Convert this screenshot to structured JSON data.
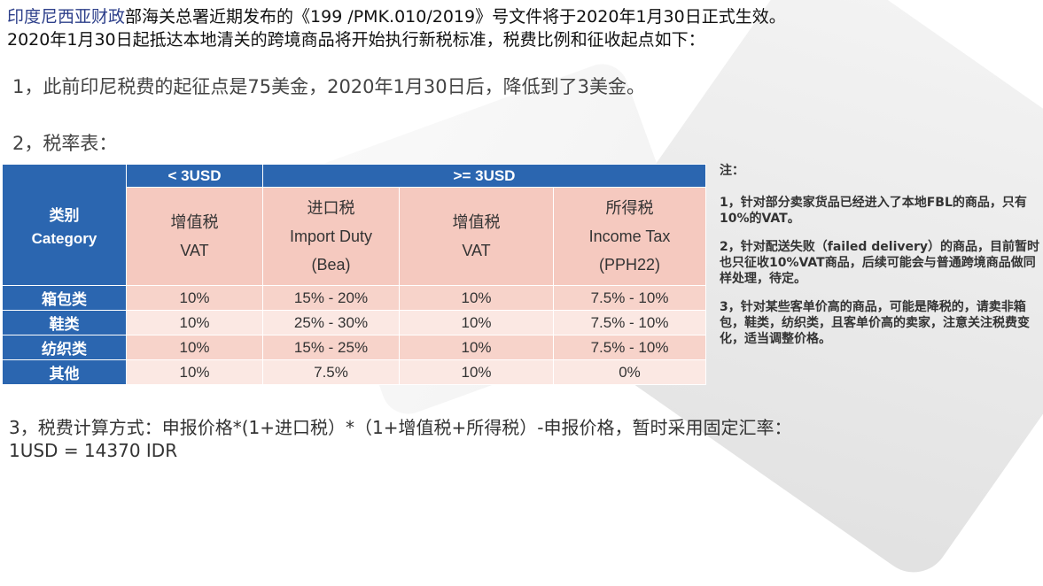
{
  "intro": {
    "line1_highlight": "印度尼西亚财政",
    "line1_rest": "部海关总署近期发布的《199 /PMK.010/2019》号文件将于2020年1月30日正式生效。",
    "line2": "2020年1月30日起抵达本地清关的跨境商品将开始执行新税标准，税费比例和征收起点如下："
  },
  "point1": "1，此前印尼税费的起征点是75美金，2020年1月30日后，降低到了3美金。",
  "point2": "2，税率表：",
  "table": {
    "group_lt": "< 3USD",
    "group_ge": ">= 3USD",
    "category_cn": "类别",
    "category_en": "Category",
    "columns": [
      {
        "cn": "增值税",
        "en": "VAT",
        "sub": ""
      },
      {
        "cn": "进口税",
        "en": "Import Duty",
        "sub": "(Bea)"
      },
      {
        "cn": "增值税",
        "en": "VAT",
        "sub": ""
      },
      {
        "cn": "所得税",
        "en": "Income Tax",
        "sub": "(PPH22)"
      }
    ],
    "rows": [
      {
        "label": "箱包类",
        "vat_lt": "10%",
        "import": "15% - 20%",
        "vat_ge": "10%",
        "income": "7.5% - 10%"
      },
      {
        "label": "鞋类",
        "vat_lt": "10%",
        "import": "25% - 30%",
        "vat_ge": "10%",
        "income": "7.5% - 10%"
      },
      {
        "label": "纺织类",
        "vat_lt": "10%",
        "import": "15% - 25%",
        "vat_ge": "10%",
        "income": "7.5% - 10%"
      },
      {
        "label": "其他",
        "vat_lt": "10%",
        "import": "7.5%",
        "vat_ge": "10%",
        "income": "0%"
      }
    ]
  },
  "notes": {
    "title": "注：",
    "items": [
      "1，针对部分卖家货品已经进入了本地FBL的商品，只有10%的VAT。",
      "2，针对配送失败（failed delivery）的商品，目前暂时也只征收10%VAT商品，后续可能会与普通跨境商品做同样处理，待定。",
      "3，针对某些客单价高的商品，可能是降税的，请卖非箱包，鞋类，纺织类，且客单价高的卖家，注意关注税费变化，适当调整价格。"
    ]
  },
  "formula": {
    "line1": "3，税费计算方式：申报价格*(1+进口税）*（1+增值税+所得税）-申报价格，暂时采用固定汇率：",
    "line2": "1USD = 14370 IDR"
  }
}
